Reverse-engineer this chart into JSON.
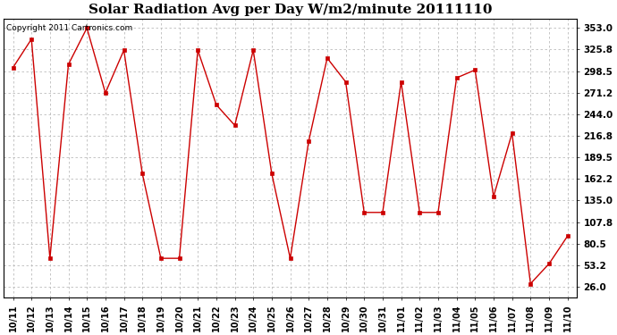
{
  "title": "Solar Radiation Avg per Day W/m2/minute 20111110",
  "copyright": "Copyright 2011 Cartronics.com",
  "dates": [
    "10/11",
    "10/12",
    "10/13",
    "10/14",
    "10/15",
    "10/16",
    "10/17",
    "10/18",
    "10/19",
    "10/20",
    "10/21",
    "10/22",
    "10/23",
    "10/24",
    "10/25",
    "10/26",
    "10/27",
    "10/28",
    "10/29",
    "10/30",
    "10/31",
    "11/01",
    "11/02",
    "11/03",
    "11/04",
    "11/05",
    "11/06",
    "11/07",
    "11/08",
    "11/09",
    "11/10"
  ],
  "values": [
    303,
    339,
    62,
    307,
    353,
    271,
    325,
    169,
    62,
    62,
    325,
    256,
    230,
    325,
    169,
    62,
    210,
    315,
    285,
    120,
    120,
    285,
    120,
    120,
    290,
    300,
    140,
    220,
    30,
    55,
    90
  ],
  "line_color": "#cc0000",
  "marker": "s",
  "marker_size": 2.5,
  "background_color": "#ffffff",
  "grid_color": "#bbbbbb",
  "yticks": [
    26.0,
    53.2,
    80.5,
    107.8,
    135.0,
    162.2,
    189.5,
    216.8,
    244.0,
    271.2,
    298.5,
    325.8,
    353.0
  ],
  "ylim": [
    13,
    365
  ],
  "title_fontsize": 11,
  "copyright_fontsize": 6.5,
  "tick_fontsize": 7,
  "ytick_fontsize": 7.5
}
